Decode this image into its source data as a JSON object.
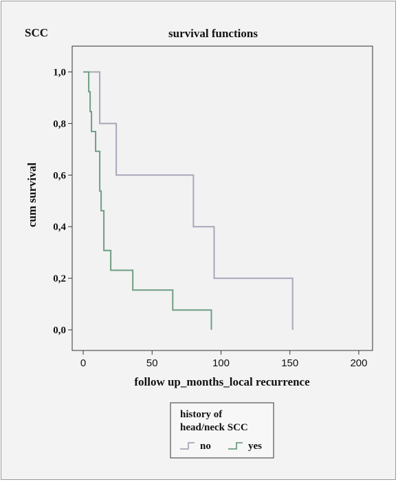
{
  "panel_label": "SCC",
  "chart_data": {
    "type": "line",
    "step": true,
    "title": "survival functions",
    "xlabel": "follow up_months_local recurrence",
    "ylabel": "cum survival",
    "xlim": [
      -8,
      210
    ],
    "ylim": [
      -0.08,
      1.1
    ],
    "xticks": [
      0,
      50,
      100,
      150,
      200
    ],
    "xtick_labels": [
      "0",
      "50",
      "100",
      "150",
      "200"
    ],
    "yticks": [
      0.0,
      0.2,
      0.4,
      0.6,
      0.8,
      1.0
    ],
    "ytick_labels": [
      "0,0",
      "0,2",
      "0,4",
      "0,6",
      "0,8",
      "1,0"
    ],
    "grid": false,
    "legend": {
      "title_line1": "history of",
      "title_line2": "head/neck SCC",
      "placement": "bottom-center",
      "entries": [
        "no",
        "yes"
      ]
    },
    "series": [
      {
        "name": "no",
        "color": "#a9a6b9",
        "points": [
          [
            0,
            1.0
          ],
          [
            12,
            1.0
          ],
          [
            12,
            0.8
          ],
          [
            24,
            0.8
          ],
          [
            24,
            0.6
          ],
          [
            80,
            0.6
          ],
          [
            80,
            0.4
          ],
          [
            95,
            0.4
          ],
          [
            95,
            0.2
          ],
          [
            152,
            0.2
          ],
          [
            152,
            0.0
          ]
        ]
      },
      {
        "name": "yes",
        "color": "#6f9d83",
        "points": [
          [
            0,
            1.0
          ],
          [
            4,
            1.0
          ],
          [
            4,
            0.923
          ],
          [
            5,
            0.923
          ],
          [
            5,
            0.846
          ],
          [
            6,
            0.846
          ],
          [
            6,
            0.769
          ],
          [
            9,
            0.769
          ],
          [
            9,
            0.692
          ],
          [
            12,
            0.692
          ],
          [
            12,
            0.538
          ],
          [
            13,
            0.538
          ],
          [
            13,
            0.462
          ],
          [
            15,
            0.462
          ],
          [
            15,
            0.308
          ],
          [
            20,
            0.308
          ],
          [
            20,
            0.231
          ],
          [
            36,
            0.231
          ],
          [
            36,
            0.154
          ],
          [
            65,
            0.154
          ],
          [
            65,
            0.077
          ],
          [
            93,
            0.077
          ],
          [
            93,
            0.0
          ]
        ]
      }
    ]
  }
}
